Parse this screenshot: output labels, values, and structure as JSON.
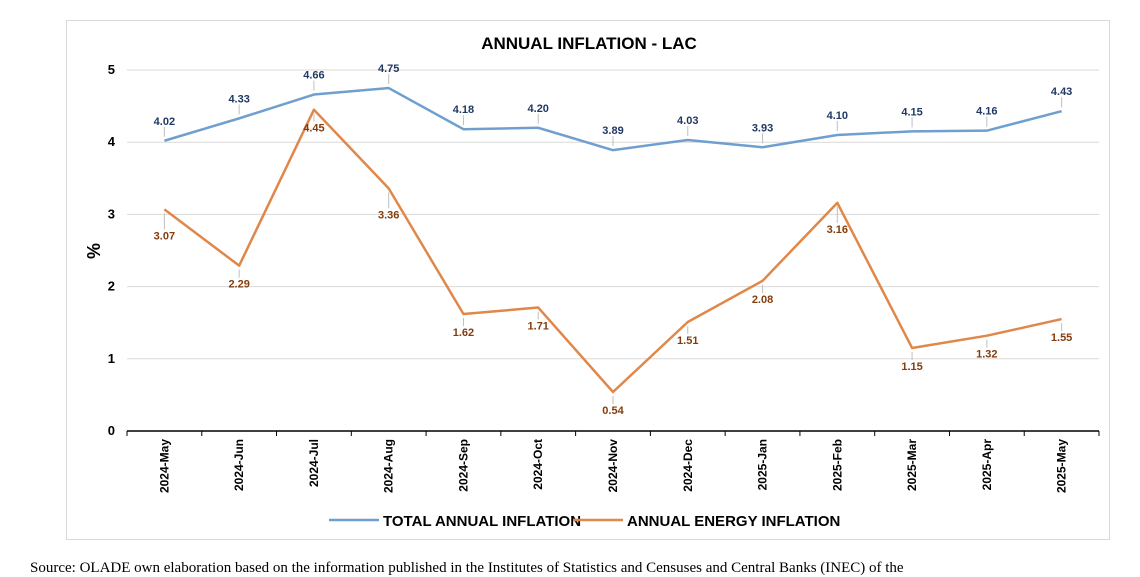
{
  "chart_data": {
    "type": "line",
    "title": "ANNUAL INFLATION  - LAC",
    "ylabel": "%",
    "ylim": [
      0,
      5
    ],
    "yticks": [
      0,
      1,
      2,
      3,
      4,
      5
    ],
    "categories": [
      "2024-May",
      "2024-Jun",
      "2024-Jul",
      "2024-Aug",
      "2024-Sep",
      "2024-Oct",
      "2024-Nov",
      "2024-Dec",
      "2025-Jan",
      "2025-Feb",
      "2025-Mar",
      "2025-Apr",
      "2025-May"
    ],
    "grid": true,
    "legend_position": "bottom",
    "series": [
      {
        "name": "TOTAL ANNUAL INFLATION",
        "color": "#6f9fcf",
        "label_color": "#1f3864",
        "values": [
          4.02,
          4.33,
          4.66,
          4.75,
          4.18,
          4.2,
          3.89,
          4.03,
          3.93,
          4.1,
          4.15,
          4.16,
          4.43
        ],
        "labels": [
          "4.02",
          "4.33",
          "4.66",
          "4.75",
          "4.18",
          "4.20",
          "3.89",
          "4.03",
          "3.93",
          "4.10",
          "4.15",
          "4.16",
          "4.43"
        ]
      },
      {
        "name": "ANNUAL ENERGY INFLATION",
        "color": "#e0874a",
        "label_color": "#843c0c",
        "values": [
          3.07,
          2.29,
          4.45,
          3.36,
          1.62,
          1.71,
          0.54,
          1.51,
          2.08,
          3.16,
          1.15,
          1.32,
          1.55
        ],
        "labels": [
          "3.07",
          "2.29",
          "4.45",
          "3.36",
          "1.62",
          "1.71",
          "0.54",
          "1.51",
          "2.08",
          "3.16",
          "1.15",
          "1.32",
          "1.55"
        ]
      }
    ]
  },
  "footer": {
    "text": "Source: OLADE own elaboration based on the information published in the Institutes of Statistics and Censuses and Central Banks (INEC) of the"
  }
}
